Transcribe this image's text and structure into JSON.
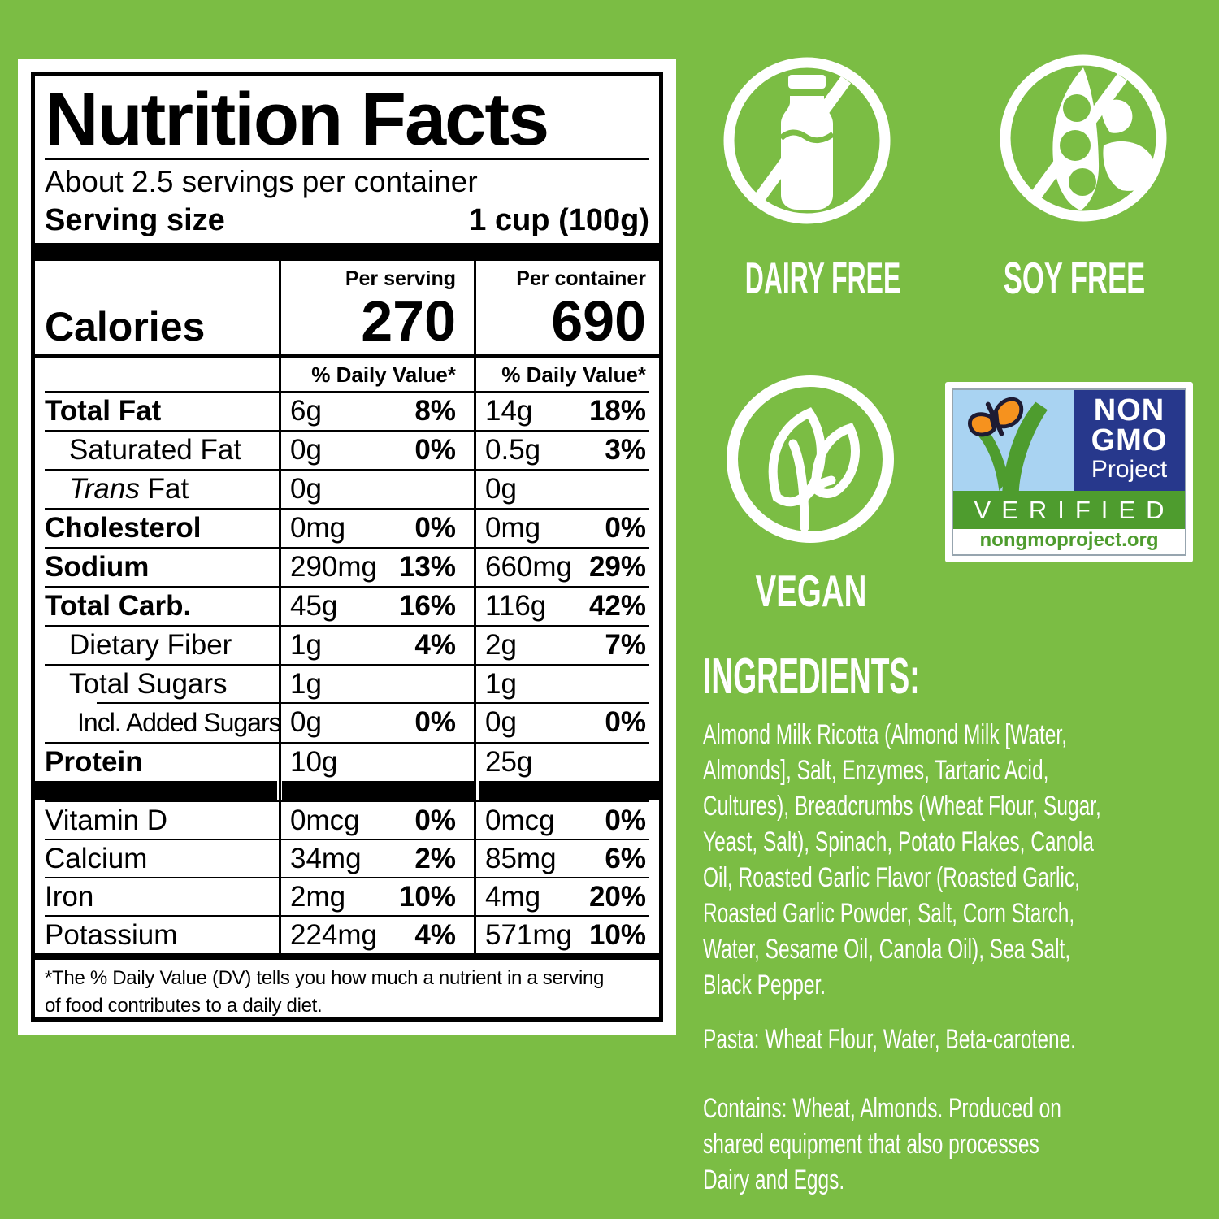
{
  "colors": {
    "background_green": "#7BBD44",
    "badge_navy": "#27388C",
    "badge_band_green": "#4E9C2E",
    "badge_sky_blue": "#A9D3F2",
    "butterfly_orange": "#F6921E",
    "label_text": "#000000",
    "right_text": "#FFFFFF"
  },
  "nutrition_label": {
    "title": "Nutrition Facts",
    "servings_per_container": "About 2.5 servings per container",
    "serving_size_label": "Serving size",
    "serving_size_value": "1 cup (100g)",
    "per_serving_header": "Per serving",
    "per_container_header": "Per container",
    "calories_label": "Calories",
    "calories_per_serving": "270",
    "calories_per_container": "690",
    "daily_value_header": "% Daily Value*",
    "rows": [
      {
        "name": "Total Fat",
        "bold": true,
        "indent": 0,
        "q1": "6g",
        "p1": "8%",
        "q2": "14g",
        "p2": "18%"
      },
      {
        "name": "Saturated Fat",
        "bold": false,
        "indent": 1,
        "q1": "0g",
        "p1": "0%",
        "q2": "0.5g",
        "p2": "3%"
      },
      {
        "italic_prefix": "Trans",
        "name": "Fat",
        "bold": false,
        "indent": 1,
        "q1": "0g",
        "p1": "",
        "q2": "0g",
        "p2": ""
      },
      {
        "name": "Cholesterol",
        "bold": true,
        "indent": 0,
        "q1": "0mg",
        "p1": "0%",
        "q2": "0mg",
        "p2": "0%"
      },
      {
        "name": "Sodium",
        "bold": true,
        "indent": 0,
        "q1": "290mg",
        "p1": "13%",
        "q2": "660mg",
        "p2": "29%"
      },
      {
        "name": "Total Carb.",
        "bold": true,
        "indent": 0,
        "q1": "45g",
        "p1": "16%",
        "q2": "116g",
        "p2": "42%"
      },
      {
        "name": "Dietary Fiber",
        "bold": false,
        "indent": 1,
        "q1": "1g",
        "p1": "4%",
        "q2": "2g",
        "p2": "7%"
      },
      {
        "name": "Total Sugars",
        "bold": false,
        "indent": 1,
        "q1": "1g",
        "p1": "",
        "q2": "1g",
        "p2": ""
      },
      {
        "name": "Incl. Added Sugars",
        "bold": false,
        "indent": 2,
        "q1": "0g",
        "p1": "0%",
        "q2": "0g",
        "p2": "0%"
      },
      {
        "name": "Protein",
        "bold": true,
        "indent": 0,
        "q1": "10g",
        "p1": "",
        "q2": "25g",
        "p2": ""
      }
    ],
    "micro_rows": [
      {
        "name": "Vitamin D",
        "q1": "0mcg",
        "p1": "0%",
        "q2": "0mcg",
        "p2": "0%"
      },
      {
        "name": "Calcium",
        "q1": "34mg",
        "p1": "2%",
        "q2": "85mg",
        "p2": "6%"
      },
      {
        "name": "Iron",
        "q1": "2mg",
        "p1": "10%",
        "q2": "4mg",
        "p2": "20%"
      },
      {
        "name": "Potassium",
        "q1": "224mg",
        "p1": "4%",
        "q2": "571mg",
        "p2": "10%"
      }
    ],
    "footnote": "*The % Daily Value (DV) tells you how much a nutrient in a serving\nof food contributes to a daily diet."
  },
  "diet_badges": {
    "dairy_free": "DAIRY FREE",
    "soy_free": "SOY FREE",
    "vegan": "VEGAN"
  },
  "non_gmo_badge": {
    "line1": "NON",
    "line2": "GMO",
    "line3": "Project",
    "verified": "VERIFIED",
    "url": "nongmoproject.org"
  },
  "ingredients": {
    "heading": "INGREDIENTS:",
    "body": "Almond Milk Ricotta (Almond Milk [Water,\nAlmonds], Salt, Enzymes, Tartaric Acid,\nCultures), Breadcrumbs (Wheat Flour, Sugar,\nYeast, Salt), Spinach, Potato Flakes, Canola\nOil, Roasted Garlic Flavor (Roasted Garlic,\nRoasted Garlic Powder, Salt, Corn Starch,\nWater, Sesame Oil, Canola Oil), Sea Salt,\nBlack Pepper.",
    "pasta": "Pasta: Wheat Flour, Water, Beta-carotene.",
    "contains": "Contains: Wheat, Almonds. Produced on\nshared equipment that also processes\nDairy and Eggs."
  }
}
